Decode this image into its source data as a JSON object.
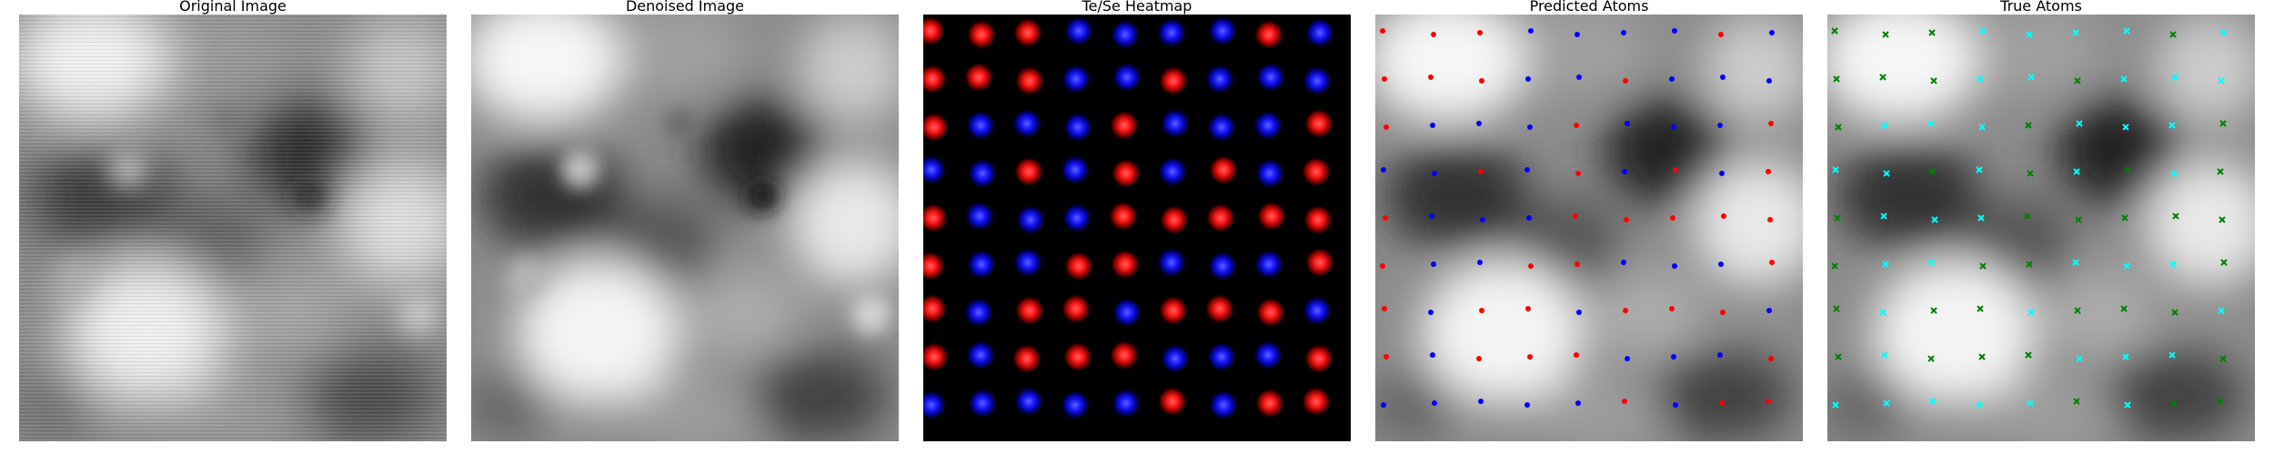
{
  "panels": [
    {
      "title": "Original Image"
    },
    {
      "title": "Denoised Image"
    },
    {
      "title": "Te/Se Heatmap"
    },
    {
      "title": "Predicted Atoms"
    },
    {
      "title": "True Atoms"
    }
  ],
  "colors": {
    "background": "#ffffff",
    "heatmap_background": "#000000",
    "te_red": "#ff1a1a",
    "se_blue": "#1a1aff",
    "predicted_red_marker": "#ff0000",
    "predicted_blue_marker": "#0000ff",
    "true_cyan_marker": "#00ffff",
    "true_green_marker": "#008000"
  },
  "grid": {
    "rows": 9,
    "cols": 9
  },
  "heatmap_colors": [
    [
      "r",
      "r",
      "r",
      "b",
      "b",
      "b",
      "b",
      "r",
      "b"
    ],
    [
      "r",
      "r",
      "r",
      "b",
      "b",
      "r",
      "b",
      "b",
      "b"
    ],
    [
      "r",
      "b",
      "b",
      "b",
      "r",
      "b",
      "b",
      "b",
      "r"
    ],
    [
      "b",
      "b",
      "r",
      "b",
      "r",
      "b",
      "r",
      "b",
      "r"
    ],
    [
      "r",
      "b",
      "b",
      "b",
      "r",
      "r",
      "r",
      "r",
      "r"
    ],
    [
      "r",
      "b",
      "b",
      "r",
      "r",
      "b",
      "b",
      "b",
      "r"
    ],
    [
      "r",
      "b",
      "r",
      "r",
      "b",
      "r",
      "r",
      "r",
      "b"
    ],
    [
      "r",
      "b",
      "r",
      "r",
      "r",
      "b",
      "b",
      "b",
      "r"
    ],
    [
      "b",
      "b",
      "b",
      "b",
      "b",
      "r",
      "b",
      "r",
      "r"
    ]
  ],
  "predicted_colors": [
    [
      "r",
      "r",
      "r",
      "b",
      "b",
      "b",
      "b",
      "r",
      "b"
    ],
    [
      "r",
      "r",
      "r",
      "b",
      "b",
      "r",
      "b",
      "b",
      "b"
    ],
    [
      "r",
      "b",
      "b",
      "b",
      "r",
      "b",
      "b",
      "b",
      "r"
    ],
    [
      "b",
      "b",
      "r",
      "b",
      "r",
      "b",
      "r",
      "b",
      "r"
    ],
    [
      "r",
      "b",
      "b",
      "b",
      "r",
      "r",
      "r",
      "r",
      "r"
    ],
    [
      "r",
      "b",
      "b",
      "r",
      "r",
      "b",
      "b",
      "b",
      "r"
    ],
    [
      "r",
      "b",
      "r",
      "r",
      "b",
      "r",
      "r",
      "r",
      "b"
    ],
    [
      "r",
      "b",
      "r",
      "r",
      "r",
      "b",
      "b",
      "b",
      "r"
    ],
    [
      "b",
      "b",
      "b",
      "b",
      "b",
      "r",
      "b",
      "r",
      "r"
    ]
  ],
  "true_colors": [
    [
      "g",
      "g",
      "g",
      "c",
      "c",
      "c",
      "c",
      "g",
      "c"
    ],
    [
      "g",
      "g",
      "g",
      "c",
      "c",
      "g",
      "c",
      "c",
      "c"
    ],
    [
      "g",
      "c",
      "c",
      "c",
      "g",
      "c",
      "c",
      "c",
      "g"
    ],
    [
      "c",
      "c",
      "g",
      "c",
      "g",
      "c",
      "g",
      "c",
      "g"
    ],
    [
      "g",
      "c",
      "c",
      "c",
      "g",
      "g",
      "g",
      "g",
      "g"
    ],
    [
      "g",
      "c",
      "c",
      "g",
      "g",
      "c",
      "c",
      "c",
      "g"
    ],
    [
      "g",
      "c",
      "g",
      "g",
      "c",
      "g",
      "g",
      "g",
      "c"
    ],
    [
      "g",
      "c",
      "g",
      "g",
      "g",
      "c",
      "c",
      "c",
      "g"
    ],
    [
      "c",
      "c",
      "c",
      "c",
      "c",
      "g",
      "c",
      "g",
      "g"
    ]
  ]
}
